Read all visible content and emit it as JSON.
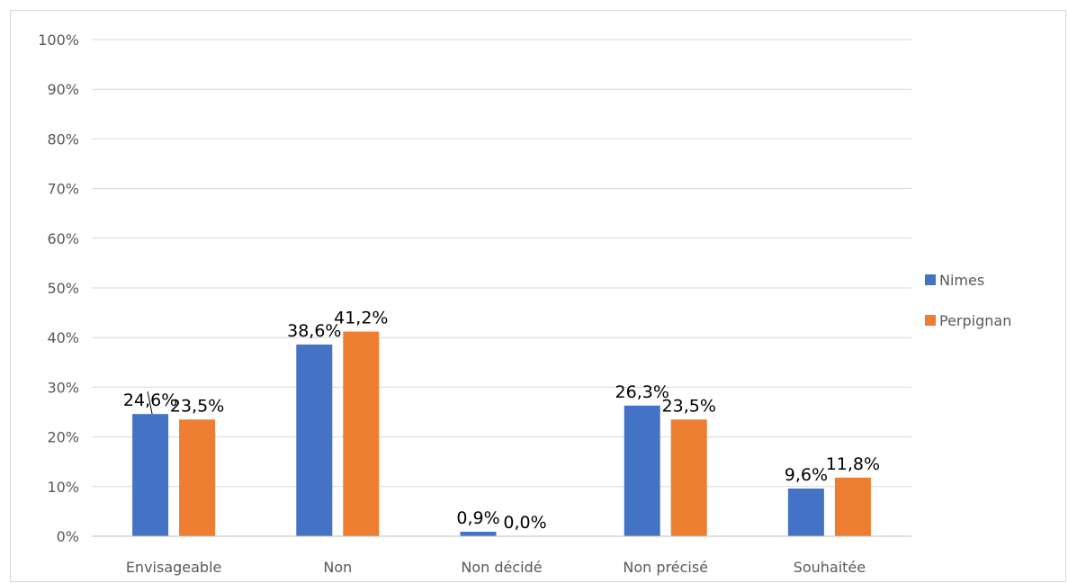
{
  "chart_data": {
    "type": "bar",
    "title": "",
    "xlabel": "",
    "ylabel": "",
    "categories": [
      "Envisageable",
      "Non",
      "Non décidé",
      "Non précisé",
      "Souhaitée"
    ],
    "series": [
      {
        "name": "Nimes",
        "color": "#4472c4",
        "values": [
          24.6,
          38.6,
          0.9,
          26.3,
          9.6
        ],
        "labels": [
          "24,6%",
          "38,6%",
          "0,9%",
          "26,3%",
          "9,6%"
        ]
      },
      {
        "name": "Perpignan",
        "color": "#ed7d31",
        "values": [
          23.5,
          41.2,
          0.0,
          23.5,
          11.8
        ],
        "labels": [
          "23,5%",
          "41,2%",
          "0,0%",
          "23,5%",
          "11,8%"
        ]
      }
    ],
    "ylim": [
      0,
      100
    ],
    "yticks": [
      0,
      10,
      20,
      30,
      40,
      50,
      60,
      70,
      80,
      90,
      100
    ],
    "ytick_labels": [
      "0%",
      "10%",
      "20%",
      "30%",
      "40%",
      "50%",
      "60%",
      "70%",
      "80%",
      "90%",
      "100%"
    ],
    "grid": true,
    "legend_position": "right"
  }
}
